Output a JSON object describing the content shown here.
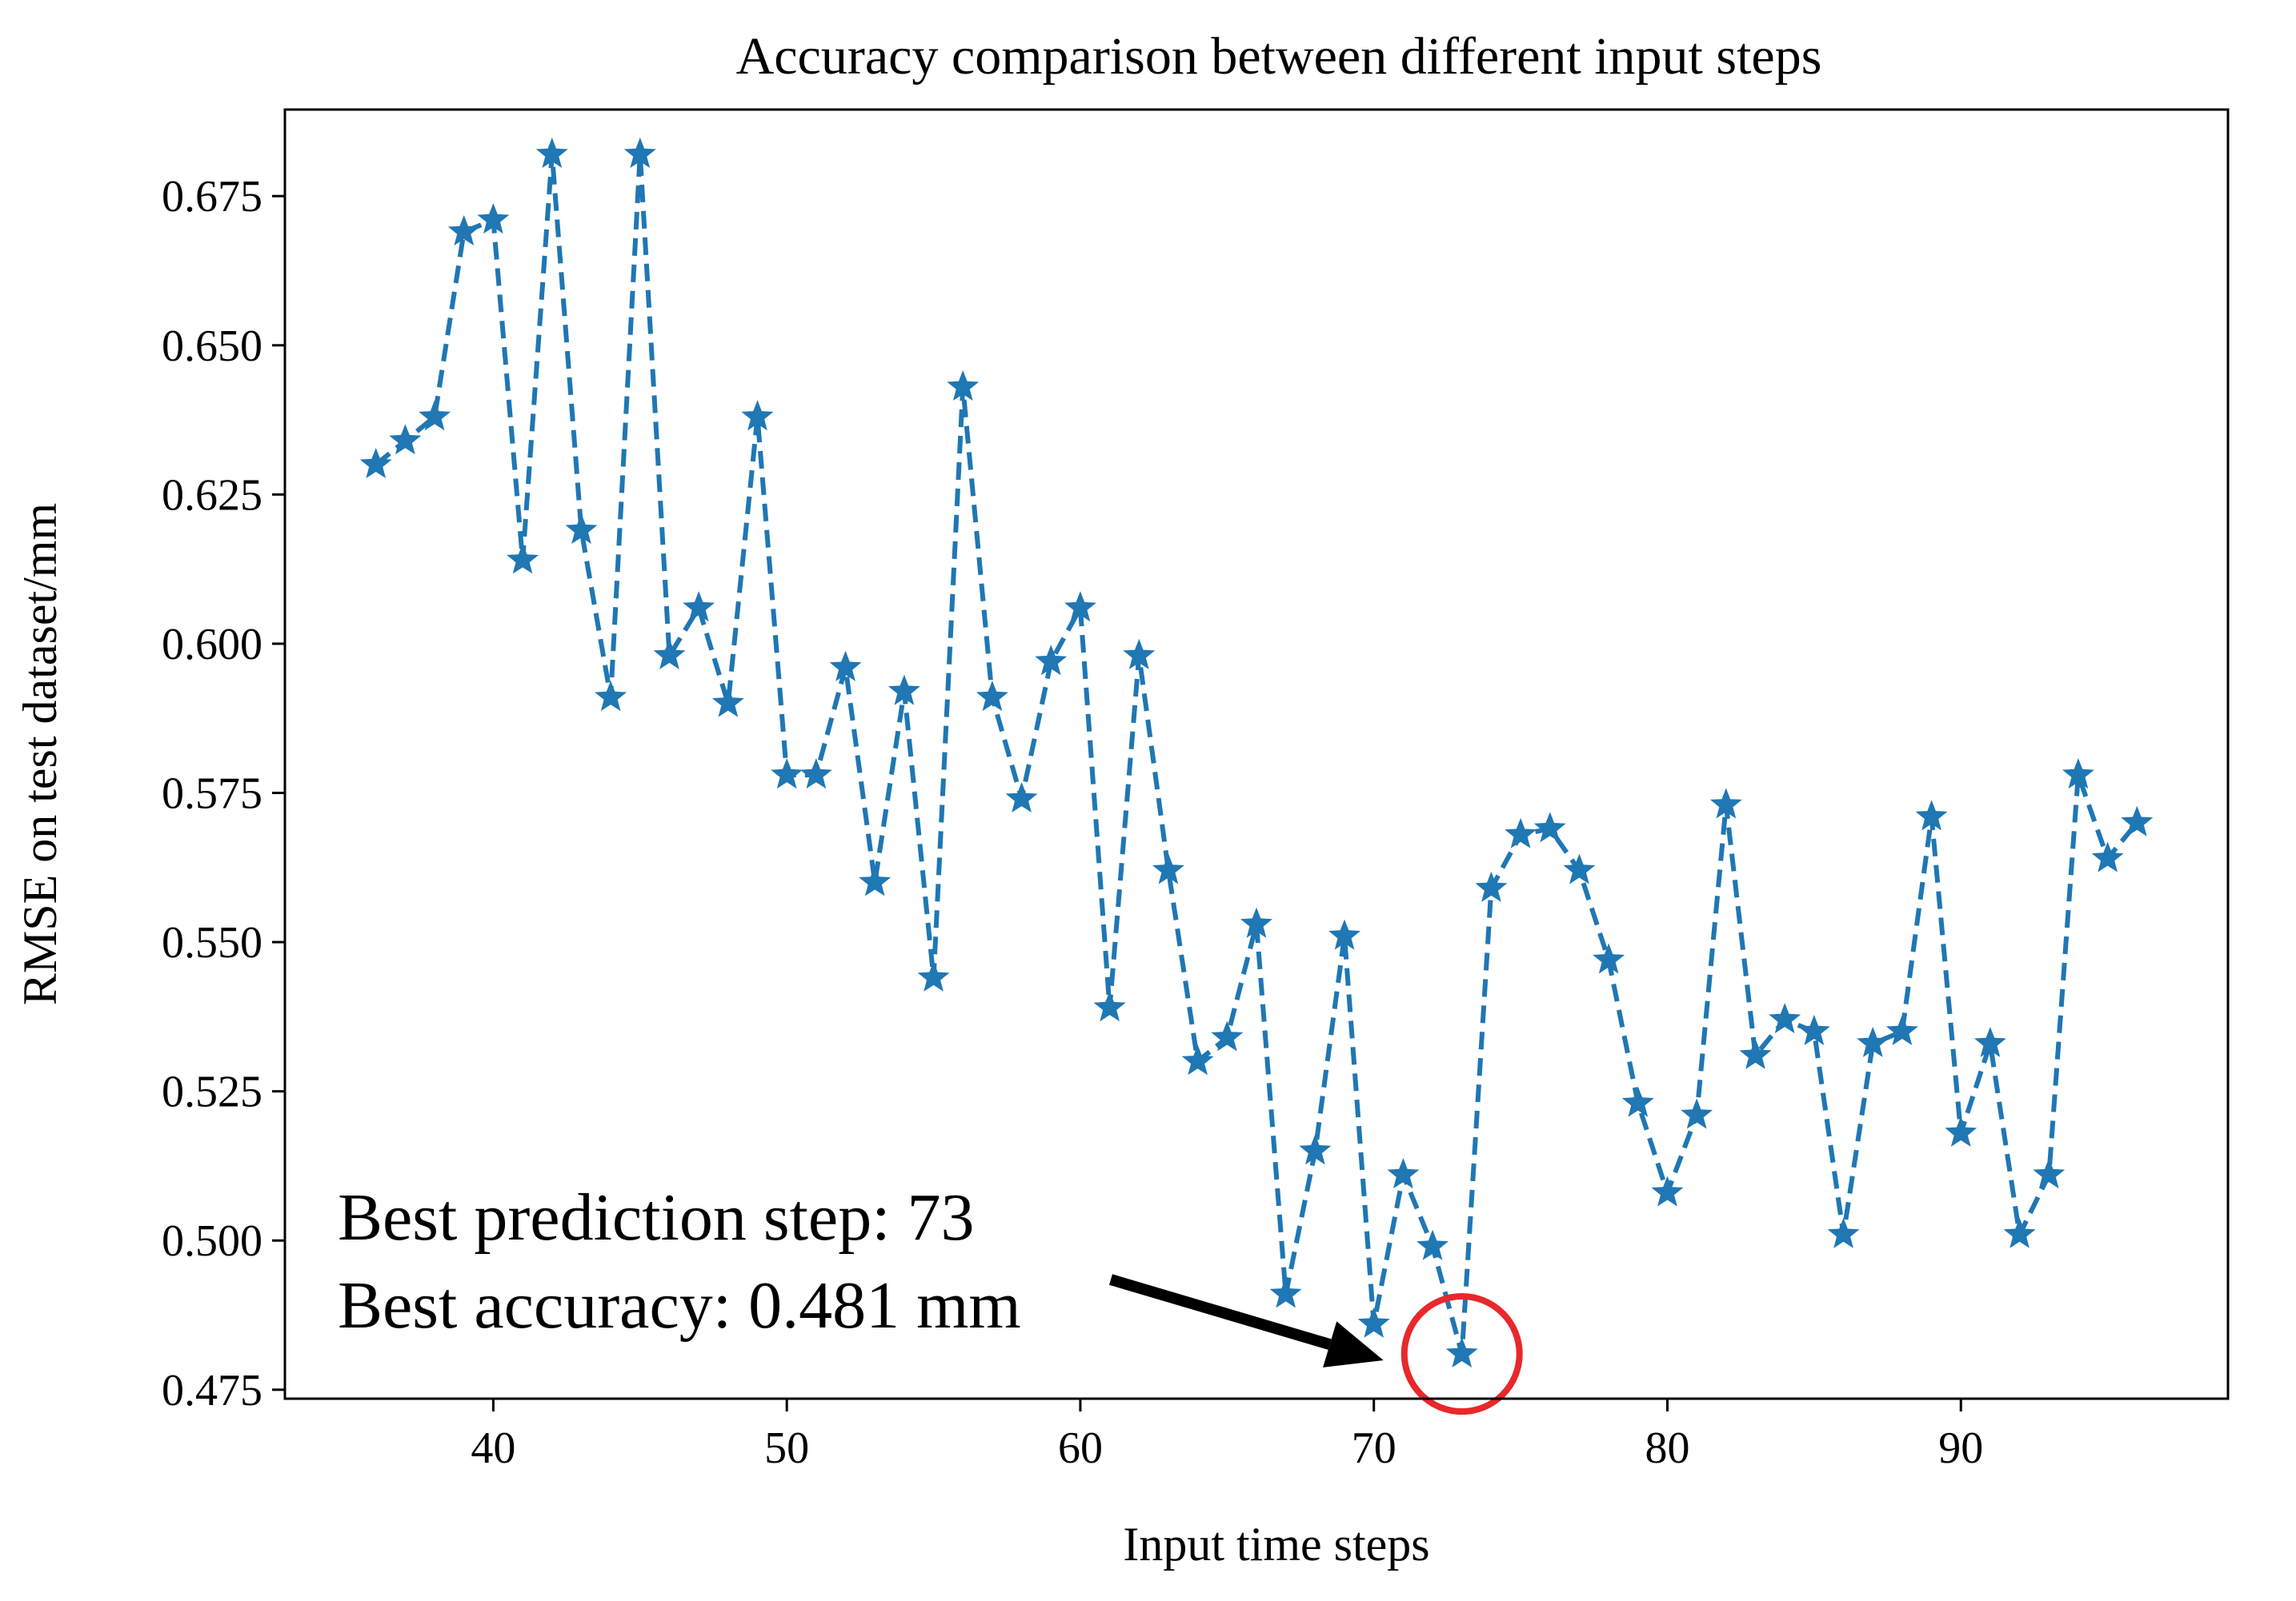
{
  "chart_data": {
    "type": "line",
    "title": "Accuracy comparison between different input steps",
    "xlabel": "Input time steps",
    "ylabel": "RMSE on test dataset/mm",
    "xlim": [
      32.9,
      99.1
    ],
    "ylim": [
      0.4735,
      0.6895
    ],
    "x_ticks": [
      40,
      50,
      60,
      70,
      80,
      90
    ],
    "x_tick_labels": [
      "40",
      "50",
      "60",
      "70",
      "80",
      "90"
    ],
    "y_ticks": [
      0.475,
      0.5,
      0.525,
      0.55,
      0.575,
      0.6,
      0.625,
      0.65,
      0.675
    ],
    "y_tick_labels": [
      "0.475",
      "0.500",
      "0.525",
      "0.550",
      "0.575",
      "0.600",
      "0.625",
      "0.650",
      "0.675"
    ],
    "grid": false,
    "series": [
      {
        "name": "RMSE",
        "color": "#1f77b4",
        "line_style": "dashed",
        "marker": "star",
        "x": [
          36,
          37,
          38,
          39,
          40,
          41,
          42,
          43,
          44,
          45,
          46,
          47,
          48,
          49,
          50,
          51,
          52,
          53,
          54,
          55,
          56,
          57,
          58,
          59,
          60,
          61,
          62,
          63,
          64,
          65,
          66,
          67,
          68,
          69,
          70,
          71,
          72,
          73,
          74,
          75,
          76,
          77,
          78,
          79,
          80,
          81,
          82,
          83,
          84,
          85,
          86,
          87,
          88,
          89,
          90,
          91,
          92,
          93,
          94,
          95,
          96
        ],
        "values": [
          0.63,
          0.634,
          0.638,
          0.669,
          0.671,
          0.614,
          0.682,
          0.619,
          0.591,
          0.682,
          0.598,
          0.606,
          0.59,
          0.638,
          0.578,
          0.578,
          0.596,
          0.56,
          0.592,
          0.544,
          0.643,
          0.591,
          0.574,
          0.597,
          0.606,
          0.539,
          0.598,
          0.562,
          0.53,
          0.534,
          0.553,
          0.491,
          0.515,
          0.551,
          0.486,
          0.511,
          0.499,
          0.481,
          0.559,
          0.568,
          0.569,
          0.562,
          0.547,
          0.523,
          0.508,
          0.521,
          0.573,
          0.531,
          0.537,
          0.535,
          0.501,
          0.533,
          0.535,
          0.571,
          0.518,
          0.533,
          0.501,
          0.511,
          0.578,
          0.564,
          0.57
        ]
      }
    ],
    "highlight": {
      "x": 73,
      "value": 0.481,
      "color": "#e8282b"
    },
    "annotation": {
      "line1": "Best prediction step: 73",
      "line2": "Best accuracy: 0.481 mm",
      "arrow_color": "#000000"
    }
  }
}
